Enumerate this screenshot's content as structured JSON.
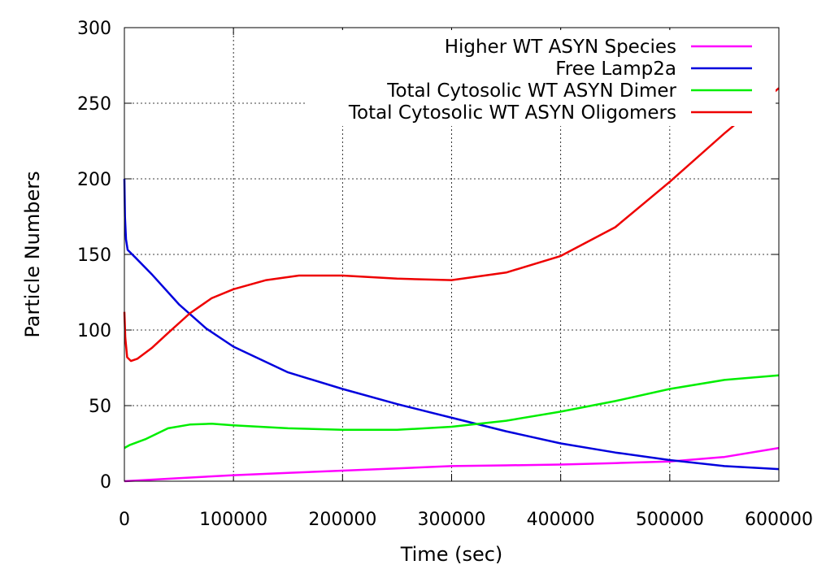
{
  "chart_data": {
    "type": "line",
    "title": "",
    "xlabel": "Time (sec)",
    "ylabel": "Particle Numbers",
    "xlim": [
      0,
      600000
    ],
    "ylim": [
      0,
      300
    ],
    "x_ticks": [
      0,
      100000,
      200000,
      300000,
      400000,
      500000,
      600000
    ],
    "x_tick_labels": [
      "0",
      "100000",
      "200000",
      "300000",
      "400000",
      "500000",
      "600000"
    ],
    "y_ticks": [
      0,
      50,
      100,
      150,
      200,
      250,
      300
    ],
    "y_tick_labels": [
      "0",
      "50",
      "100",
      "150",
      "200",
      "250",
      "300"
    ],
    "grid": true,
    "legend_position": "top-right",
    "series": [
      {
        "name": "Higher WT ASYN Species",
        "color": "#ff00ff",
        "points": [
          [
            0,
            0
          ],
          [
            50000,
            2
          ],
          [
            100000,
            4
          ],
          [
            150000,
            5.5
          ],
          [
            200000,
            7
          ],
          [
            250000,
            8.5
          ],
          [
            300000,
            10
          ],
          [
            350000,
            10.5
          ],
          [
            400000,
            11
          ],
          [
            450000,
            12
          ],
          [
            500000,
            13
          ],
          [
            550000,
            16
          ],
          [
            600000,
            22
          ]
        ]
      },
      {
        "name": "Free Lamp2a",
        "color": "#0000dd",
        "points": [
          [
            0,
            200
          ],
          [
            500,
            175
          ],
          [
            1500,
            160
          ],
          [
            3000,
            153
          ],
          [
            10000,
            148
          ],
          [
            25000,
            137
          ],
          [
            50000,
            117
          ],
          [
            75000,
            101
          ],
          [
            100000,
            89
          ],
          [
            150000,
            72
          ],
          [
            200000,
            61
          ],
          [
            250000,
            51
          ],
          [
            300000,
            42
          ],
          [
            350000,
            33
          ],
          [
            400000,
            25
          ],
          [
            450000,
            19
          ],
          [
            500000,
            14
          ],
          [
            550000,
            10
          ],
          [
            600000,
            8
          ]
        ]
      },
      {
        "name": "Total Cytosolic WT ASYN Dimer",
        "color": "#00ee00",
        "points": [
          [
            0,
            22
          ],
          [
            5000,
            24
          ],
          [
            20000,
            28
          ],
          [
            40000,
            35
          ],
          [
            60000,
            37.5
          ],
          [
            80000,
            38
          ],
          [
            100000,
            37
          ],
          [
            150000,
            35
          ],
          [
            200000,
            34
          ],
          [
            250000,
            34
          ],
          [
            300000,
            36
          ],
          [
            350000,
            40
          ],
          [
            400000,
            46
          ],
          [
            450000,
            53
          ],
          [
            500000,
            61
          ],
          [
            550000,
            67
          ],
          [
            600000,
            70
          ]
        ]
      },
      {
        "name": "Total Cytosolic WT ASYN Oligomers",
        "color": "#ee0000",
        "points": [
          [
            0,
            112
          ],
          [
            800,
            95
          ],
          [
            2500,
            82
          ],
          [
            6000,
            79.5
          ],
          [
            12000,
            81
          ],
          [
            25000,
            88
          ],
          [
            40000,
            98
          ],
          [
            60000,
            111
          ],
          [
            80000,
            121
          ],
          [
            100000,
            127
          ],
          [
            130000,
            133
          ],
          [
            160000,
            136
          ],
          [
            200000,
            136
          ],
          [
            250000,
            134
          ],
          [
            300000,
            133
          ],
          [
            350000,
            138
          ],
          [
            400000,
            149
          ],
          [
            450000,
            168
          ],
          [
            500000,
            198
          ],
          [
            550000,
            230
          ],
          [
            600000,
            260
          ]
        ]
      }
    ]
  }
}
